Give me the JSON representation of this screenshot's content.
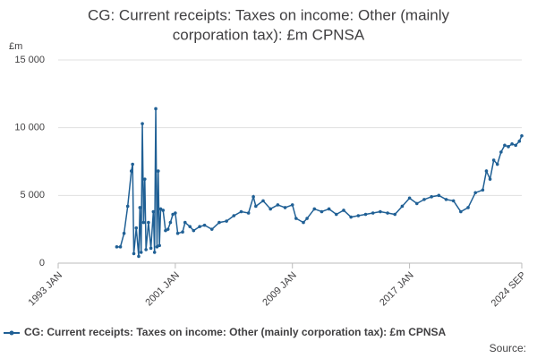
{
  "chart_data": {
    "type": "line",
    "title": [
      "CG: Current receipts: Taxes on income: Other (mainly",
      "corporation tax): £m CPNSA"
    ],
    "y_unit": "£m",
    "source": "Source:",
    "xlim": [
      "1993 JAN",
      "2024 SEP"
    ],
    "xticks": [
      "1993 JAN",
      "2001 JAN",
      "2009 JAN",
      "2017 JAN",
      "2024 SEP"
    ],
    "ylim": [
      0,
      15000
    ],
    "yticks": [
      0,
      {
        "value": 5000,
        "label": "5 000"
      },
      {
        "value": 10000,
        "label": "10 000"
      },
      {
        "value": 15000,
        "label": "15 000"
      }
    ],
    "grid": true,
    "x": [
      "1997 JAN",
      "1997 APR",
      "1997 JUL",
      "1997 OCT",
      "1998 JAN",
      "1998 FEB",
      "1998 MAR",
      "1998 MAY",
      "1998 JUL",
      "1998 AUG",
      "1998 SEP",
      "1998 OCT",
      "1998 NOV",
      "1998 DEC",
      "1999 JAN",
      "1999 MAR",
      "1999 MAY",
      "1999 JUL",
      "1999 AUG",
      "1999 SEP",
      "1999 OCT",
      "1999 NOV",
      "1999 DEC",
      "2000 JAN",
      "2000 MAR",
      "2000 MAY",
      "2000 JUL",
      "2000 SEP",
      "2000 NOV",
      "2001 JAN",
      "2001 MAR",
      "2001 JUL",
      "2001 SEP",
      "2002 JAN",
      "2002 APR",
      "2002 SEP",
      "2003 JAN",
      "2003 JUL",
      "2004 JAN",
      "2004 JUL",
      "2005 JAN",
      "2005 JUL",
      "2006 JAN",
      "2006 MAY",
      "2006 JUL",
      "2007 JAN",
      "2007 JUL",
      "2008 JAN",
      "2008 JUL",
      "2009 JAN",
      "2009 APR",
      "2009 OCT",
      "2010 JAN",
      "2010 JUL",
      "2011 JAN",
      "2011 JUL",
      "2012 JAN",
      "2012 JUL",
      "2013 JAN",
      "2013 JUL",
      "2014 JAN",
      "2014 JUL",
      "2015 JAN",
      "2015 JUL",
      "2016 JAN",
      "2016 JUL",
      "2017 JAN",
      "2017 JUL",
      "2018 JAN",
      "2018 JUL",
      "2019 JAN",
      "2019 JUL",
      "2020 JAN",
      "2020 JUL",
      "2021 JAN",
      "2021 JUL",
      "2022 JAN",
      "2022 APR",
      "2022 JUL",
      "2022 OCT",
      "2023 JAN",
      "2023 APR",
      "2023 JUL",
      "2023 OCT",
      "2024 JAN",
      "2024 APR",
      "2024 JUL",
      "2024 SEP"
    ],
    "series": [
      {
        "name": "CG: Current receipts: Taxes on income: Other (mainly corporation tax): £m CPNSA",
        "color": "#206095",
        "values": [
          1200,
          1200,
          2200,
          4200,
          6800,
          7300,
          700,
          2600,
          500,
          4100,
          800,
          10300,
          3000,
          6200,
          1000,
          3000,
          1100,
          3800,
          800,
          11400,
          1200,
          6800,
          1300,
          4000,
          3900,
          2400,
          2500,
          3000,
          3600,
          3700,
          2200,
          2300,
          3000,
          2700,
          2400,
          2700,
          2800,
          2500,
          3000,
          3100,
          3500,
          3800,
          3700,
          4900,
          4200,
          4600,
          4000,
          4300,
          4100,
          4300,
          3300,
          3000,
          3300,
          4000,
          3800,
          4000,
          3600,
          3900,
          3400,
          3500,
          3600,
          3700,
          3800,
          3700,
          3600,
          4200,
          4800,
          4400,
          4700,
          4900,
          5000,
          4700,
          4600,
          3800,
          4100,
          5200,
          5400,
          6800,
          6200,
          7600,
          7300,
          8200,
          8700,
          8600,
          8800,
          8700,
          9000,
          9400
        ]
      }
    ]
  }
}
